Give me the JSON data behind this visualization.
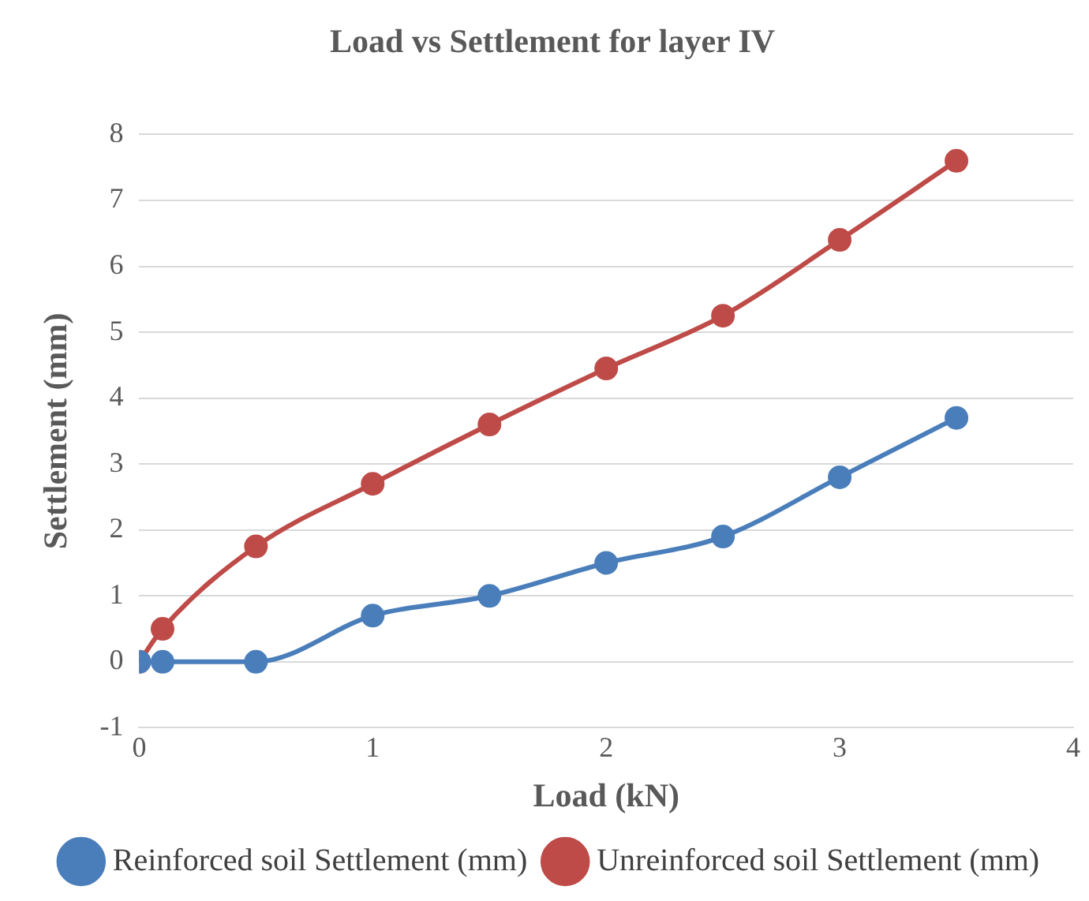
{
  "chart_data": {
    "type": "line",
    "title": "Load vs Settlement for layer IV",
    "xlabel": "Load (kN)",
    "ylabel": "Settlement (mm)",
    "xlim": [
      0,
      4
    ],
    "xticks": [
      0,
      1,
      2,
      3,
      4
    ],
    "ylim": [
      -1,
      8
    ],
    "yticks": [
      -1,
      0,
      1,
      2,
      3,
      4,
      5,
      6,
      7,
      8
    ],
    "grid": "y",
    "legend": "bottom",
    "marker": "circle",
    "line_style": "solid",
    "series": [
      {
        "name": "Reinforced soil Settlement (mm)",
        "color": "#4a7ebb",
        "x": [
          0,
          0.1,
          0.5,
          1,
          1.5,
          2,
          2.5,
          3,
          3.5
        ],
        "values": [
          0,
          0,
          0,
          0.7,
          1.0,
          1.5,
          1.9,
          2.8,
          3.7
        ]
      },
      {
        "name": "Unreinforced soil Settlement (mm)",
        "color": "#be4b48",
        "x": [
          0,
          0.1,
          0.5,
          1,
          1.5,
          2,
          2.5,
          3,
          3.5
        ],
        "values": [
          0,
          0.5,
          1.75,
          2.7,
          3.6,
          4.45,
          5.25,
          6.4,
          7.6
        ]
      }
    ]
  }
}
